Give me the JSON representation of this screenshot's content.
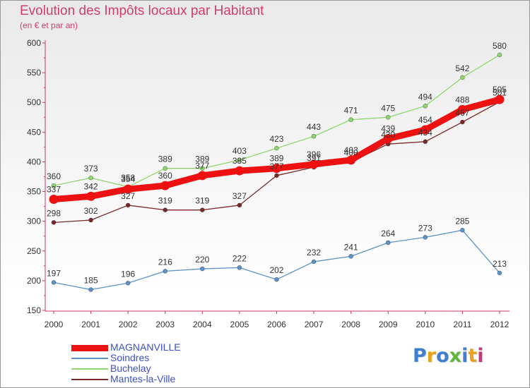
{
  "title": "Evolution des Impôts locaux par Habitant",
  "subtitle": "(en € et par an)",
  "logo": {
    "text": "Proxiti",
    "letter_colors": [
      "#3f7fd0",
      "#e8a21c",
      "#3f7fd0",
      "#5cb83a",
      "#3f7fd0",
      "#e8a21c",
      "#c23a7a"
    ]
  },
  "chart_data": {
    "type": "line",
    "categories": [
      "2000",
      "2001",
      "2002",
      "2003",
      "2004",
      "2005",
      "2006",
      "2007",
      "2008",
      "2009",
      "2010",
      "2011",
      "2012"
    ],
    "ylim": [
      150,
      600
    ],
    "yticks": [
      150,
      200,
      250,
      300,
      350,
      400,
      450,
      500,
      550,
      600
    ],
    "grid": false,
    "legend_position": "bottom-left",
    "series": [
      {
        "name": "MAGNANVILLE",
        "color": "#ee1111",
        "emphasis": true,
        "values": [
          337,
          342,
          354,
          360,
          377,
          385,
          389,
          396,
          403,
          439,
          454,
          488,
          505
        ],
        "labels_shown": [
          true,
          true,
          true,
          true,
          true,
          true,
          true,
          true,
          true,
          true,
          true,
          true,
          true
        ]
      },
      {
        "name": "Soindres",
        "color": "#5b93c8",
        "emphasis": false,
        "values": [
          197,
          185,
          196,
          216,
          220,
          222,
          202,
          232,
          241,
          264,
          273,
          285,
          213
        ],
        "labels_shown": [
          true,
          true,
          true,
          true,
          true,
          true,
          true,
          true,
          true,
          true,
          true,
          true,
          true
        ]
      },
      {
        "name": "Buchelay",
        "color": "#8fd66f",
        "emphasis": false,
        "values": [
          360,
          373,
          358,
          389,
          389,
          403,
          423,
          443,
          471,
          475,
          494,
          542,
          580
        ],
        "labels_shown": [
          true,
          true,
          true,
          true,
          true,
          true,
          true,
          true,
          true,
          true,
          true,
          true,
          true
        ]
      },
      {
        "name": "Mantes-la-Ville",
        "color": "#7a2a2a",
        "emphasis": false,
        "values": [
          298,
          302,
          327,
          319,
          319,
          327,
          377,
          391,
          400,
          430,
          434,
          467,
          501
        ],
        "labels_shown": [
          true,
          true,
          true,
          true,
          true,
          true,
          true,
          true,
          true,
          true,
          true,
          true,
          true
        ]
      }
    ]
  }
}
